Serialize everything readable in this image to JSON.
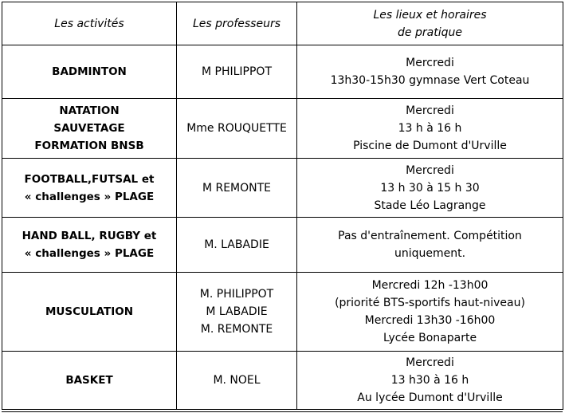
{
  "header": {
    "activities": "Les activités",
    "teachers": "Les professeurs",
    "places_line1": "Les lieux et horaires",
    "places_line2": "de pratique"
  },
  "rows": [
    {
      "activity": [
        "BADMINTON"
      ],
      "teachers": [
        "M PHILIPPOT"
      ],
      "schedule": [
        "Mercredi",
        "13h30-15h30 gymnase Vert Coteau"
      ]
    },
    {
      "activity": [
        "NATATION",
        "SAUVETAGE",
        "FORMATION BNSB"
      ],
      "teachers": [
        "Mme ROUQUETTE"
      ],
      "schedule": [
        "Mercredi",
        "13 h  à 16 h",
        "Piscine de Dumont d'Urville"
      ]
    },
    {
      "activity": [
        "FOOTBALL,FUTSAL et",
        "« challenges » PLAGE"
      ],
      "teachers": [
        "M REMONTE"
      ],
      "schedule": [
        "Mercredi",
        "13 h 30 à 15 h 30",
        "Stade Léo Lagrange"
      ]
    },
    {
      "activity": [
        "HAND BALL, RUGBY et",
        "« challenges » PLAGE"
      ],
      "teachers": [
        "M. LABADIE"
      ],
      "schedule": [
        "Pas d'entraînement. Compétition",
        "uniquement."
      ]
    },
    {
      "activity": [
        "MUSCULATION"
      ],
      "teachers": [
        "M. PHILIPPOT",
        "M LABADIE",
        "M. REMONTE"
      ],
      "schedule": [
        "Mercredi 12h -13h00",
        "(priorité BTS-sportifs haut-niveau)",
        "Mercredi 13h30 -16h00",
        "Lycée Bonaparte"
      ]
    },
    {
      "activity": [
        "BASKET"
      ],
      "teachers": [
        "M. NOEL"
      ],
      "schedule": [
        "Mercredi",
        "13 h30 à 16 h",
        "Au lycée Dumont d'Urville"
      ]
    }
  ]
}
